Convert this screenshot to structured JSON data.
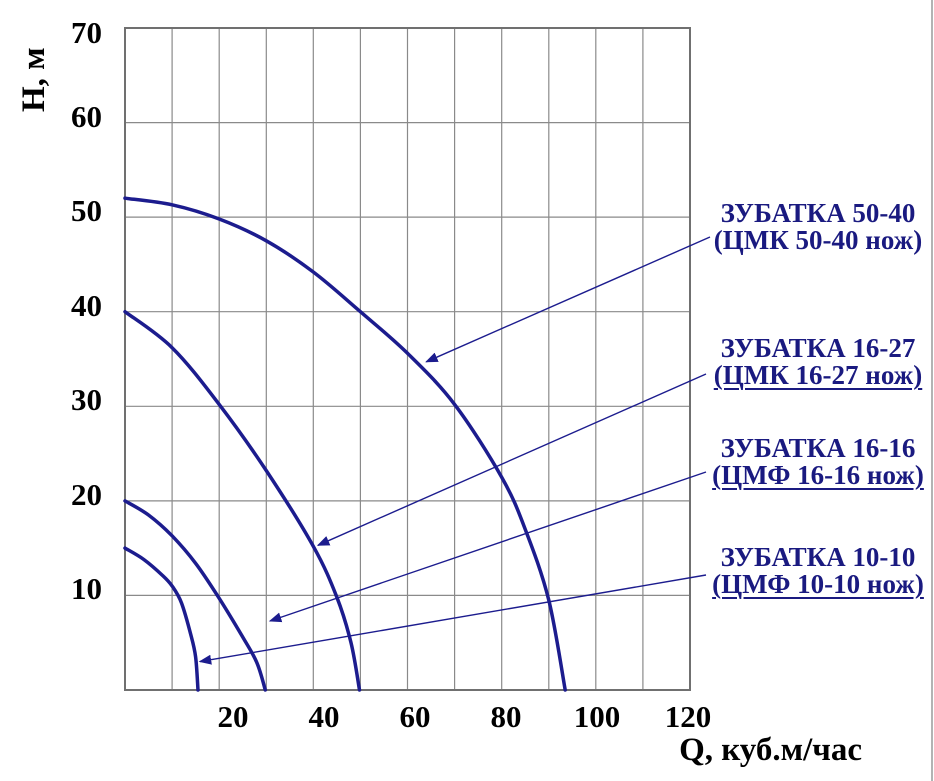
{
  "chart_data": {
    "type": "line",
    "title": "",
    "xlabel": "Q, куб.м/час",
    "ylabel": "Н, м",
    "xlim": [
      0,
      120
    ],
    "ylim": [
      0,
      70
    ],
    "x_ticks": [
      20,
      40,
      60,
      80,
      100,
      120
    ],
    "y_ticks": [
      70,
      60,
      50,
      40,
      30,
      20,
      10
    ],
    "grid": true,
    "grid_step": {
      "x": 10,
      "y": 10
    },
    "legend_position": "right",
    "colors": {
      "curve": "#1c1c8e",
      "label_text": "#1a1a80",
      "tick_text": "#000000",
      "grid": "#8a8a8a",
      "border": "#707070"
    },
    "series": [
      {
        "name": "ЗУБАТКА 50-40 (ЦМК 50-40 нож)",
        "points": [
          [
            0,
            52
          ],
          [
            10,
            51.3
          ],
          [
            20,
            49.8
          ],
          [
            30,
            47.5
          ],
          [
            40,
            44.2
          ],
          [
            50,
            40
          ],
          [
            60,
            35.6
          ],
          [
            70,
            30.2
          ],
          [
            80,
            22.5
          ],
          [
            85,
            17
          ],
          [
            90,
            9.5
          ],
          [
            93.5,
            0
          ]
        ]
      },
      {
        "name": "ЗУБАТКА 16-27 (ЦМК 16-27 нож)",
        "points": [
          [
            0,
            40
          ],
          [
            10,
            36.2
          ],
          [
            20,
            30.2
          ],
          [
            30,
            23.2
          ],
          [
            40,
            15.2
          ],
          [
            45,
            9.8
          ],
          [
            48,
            5
          ],
          [
            49.8,
            0
          ]
        ]
      },
      {
        "name": "ЗУБАТКА 16-16 (ЦМФ 16-16 нож)",
        "points": [
          [
            0,
            20
          ],
          [
            5,
            18.5
          ],
          [
            10,
            16.3
          ],
          [
            15,
            13.4
          ],
          [
            20,
            9.7
          ],
          [
            25,
            5.6
          ],
          [
            28,
            2.9
          ],
          [
            29.8,
            0
          ]
        ]
      },
      {
        "name": "ЗУБАТКА 10-10 (ЦМФ 10-10 нож)",
        "points": [
          [
            0,
            15
          ],
          [
            4,
            13.8
          ],
          [
            8,
            12.1
          ],
          [
            10,
            11
          ],
          [
            12,
            9.2
          ],
          [
            14,
            5.8
          ],
          [
            15,
            3.5
          ],
          [
            15.5,
            0
          ]
        ]
      }
    ],
    "annotations": [
      {
        "label_line1": "ЗУБАТКА 50-40",
        "label_line2": "(ЦМК 50-40 нож)",
        "underline_line2": false,
        "arrow_tip": [
          64,
          34.7
        ]
      },
      {
        "label_line1": "ЗУБАТКА 16-27",
        "label_line2": "(ЦМК 16-27 нож)",
        "underline_line2": true,
        "arrow_tip": [
          41,
          15.3
        ]
      },
      {
        "label_line1": "ЗУБАТКА 16-16",
        "label_line2": "(ЦМФ 16-16 нож)",
        "underline_line2": true,
        "arrow_tip": [
          30.8,
          7.3
        ]
      },
      {
        "label_line1": "ЗУБАТКА 10-10",
        "label_line2": "(ЦМФ 10-10 нож)",
        "underline_line2": true,
        "arrow_tip": [
          15.9,
          3.0
        ]
      }
    ]
  }
}
